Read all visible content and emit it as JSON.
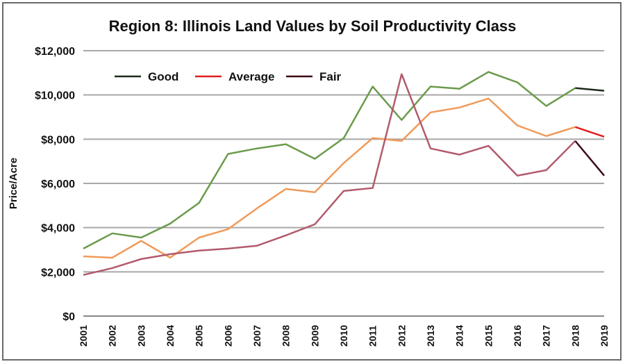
{
  "chart_data": {
    "type": "line",
    "title": "Region 8: Illinois Land Values by Soil Productivity Class",
    "xlabel": "",
    "ylabel": "Price/Acre",
    "ylim": [
      0,
      12000
    ],
    "yticks": [
      0,
      2000,
      4000,
      6000,
      8000,
      10000,
      12000
    ],
    "ytick_labels": [
      "$0",
      "$2,000",
      "$4,000",
      "$6,000",
      "$8,000",
      "$10,000",
      "$12,000"
    ],
    "grid": "horizontal",
    "legend_position": "top-left",
    "categories": [
      "2001",
      "2002",
      "2003",
      "2004",
      "2005",
      "2006",
      "2007",
      "2008",
      "2009",
      "2010",
      "2011",
      "2012",
      "2013",
      "2014",
      "2015",
      "2016",
      "2017",
      "2018",
      "2019"
    ],
    "series": [
      {
        "name": "Good",
        "color": "#6b9a4c",
        "legend_color": "#1e2a1a",
        "values": [
          3050,
          3740,
          3550,
          4180,
          5120,
          7330,
          7580,
          7770,
          7110,
          8050,
          10380,
          8870,
          10380,
          10280,
          11040,
          10570,
          9500,
          10310,
          10190
        ]
      },
      {
        "name": "Average",
        "color": "#f09a5a",
        "legend_color": "#e02020",
        "values": [
          2700,
          2640,
          3400,
          2640,
          3550,
          3930,
          4870,
          5750,
          5600,
          6920,
          8050,
          7920,
          9210,
          9430,
          9840,
          8620,
          8140,
          8550,
          8110
        ]
      },
      {
        "name": "Fair",
        "color": "#b25a6c",
        "legend_color": "#3a0a14",
        "values": [
          1860,
          2170,
          2580,
          2800,
          2960,
          3050,
          3180,
          3650,
          4150,
          5660,
          5790,
          10940,
          7580,
          7300,
          7700,
          6350,
          6600,
          7920,
          6350
        ]
      }
    ]
  }
}
